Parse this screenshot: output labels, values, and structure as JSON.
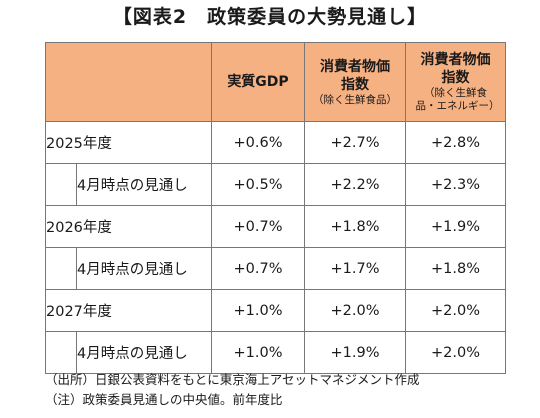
{
  "title": "【図表2　政策委員の大勢見通し】",
  "columns": [
    {
      "label": "実質GDP",
      "sub": ""
    },
    {
      "label": "消費者物価 指数",
      "sub": "（除く生鮮食品）"
    },
    {
      "label": "消費者物価 指数",
      "sub": "（除く生鮮食品・エネルギー）"
    }
  ],
  "rows": [
    {
      "year": "2025年度",
      "values": [
        "+0.6%",
        "+2.7%",
        "+2.8%"
      ],
      "sub_label": "4月時点の見通し",
      "sub_values": [
        "+0.5%",
        "+2.2%",
        "+2.3%"
      ]
    },
    {
      "year": "2026年度",
      "values": [
        "+0.7%",
        "+1.8%",
        "+1.9%"
      ],
      "sub_label": "4月時点の見通し",
      "sub_values": [
        "+0.7%",
        "+1.7%",
        "+1.8%"
      ]
    },
    {
      "year": "2027年度",
      "values": [
        "+1.0%",
        "+2.0%",
        "+2.0%"
      ],
      "sub_label": "4月時点の見通し",
      "sub_values": [
        "+1.0%",
        "+1.9%",
        "+2.0%"
      ]
    }
  ],
  "notes": [
    "（出所）日銀公表資料をもとに東京海上アセットマネジメント作成",
    "（注）政策委員見通しの中央値。前年度比"
  ]
}
